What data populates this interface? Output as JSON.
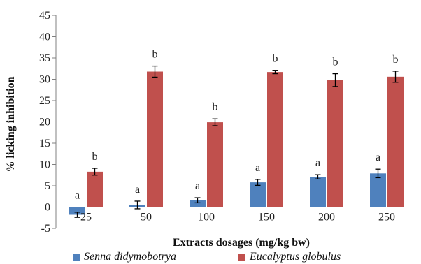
{
  "chart_data": {
    "type": "bar",
    "title": "",
    "xlabel": "Extracts dosages (mg/kg bw)",
    "ylabel": "% licking inhibition",
    "ylim": [
      -5,
      45
    ],
    "yticks": [
      "-5",
      "0",
      "5",
      "10",
      "15",
      "20",
      "25",
      "30",
      "35",
      "40",
      "45"
    ],
    "categories": [
      "25",
      "50",
      "100",
      "150",
      "200",
      "250"
    ],
    "grid": false,
    "legend_position": "bottom",
    "series": [
      {
        "name": "Senna didymobotrya",
        "color": "#4f81bd",
        "values": [
          -1.8,
          0.5,
          1.6,
          5.8,
          7.1,
          7.9
        ],
        "errors": [
          0.6,
          0.9,
          0.6,
          0.7,
          0.5,
          1.0
        ],
        "labels": [
          "a",
          "a",
          "a",
          "a",
          "a",
          "a"
        ]
      },
      {
        "name": "Eucalyptus globulus",
        "color": "#c0504d",
        "values": [
          8.3,
          31.8,
          19.9,
          31.7,
          29.8,
          30.6
        ],
        "errors": [
          0.8,
          1.3,
          0.8,
          0.4,
          1.5,
          1.3
        ],
        "labels": [
          "b",
          "b",
          "b",
          "b",
          "b",
          "b"
        ]
      }
    ]
  }
}
